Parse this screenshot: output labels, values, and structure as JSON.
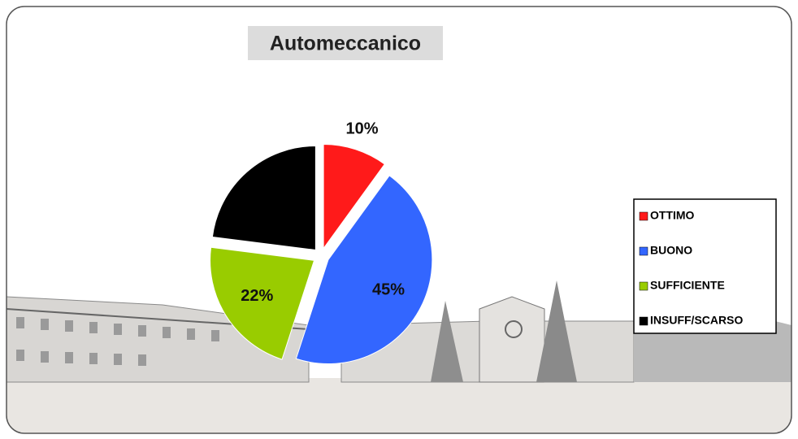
{
  "chart_data": {
    "type": "pie",
    "title": "Automeccanico",
    "categories": [
      "OTTIMO",
      "BUONO",
      "SUFFICIENTE",
      "INSUFF/SCARSO"
    ],
    "values": [
      10,
      45,
      22,
      23
    ],
    "value_labels": [
      "10%",
      "45%",
      "22%",
      null
    ],
    "colors": [
      "#ff1a1a",
      "#3366ff",
      "#99cc00",
      "#000000"
    ],
    "legend": "right"
  }
}
